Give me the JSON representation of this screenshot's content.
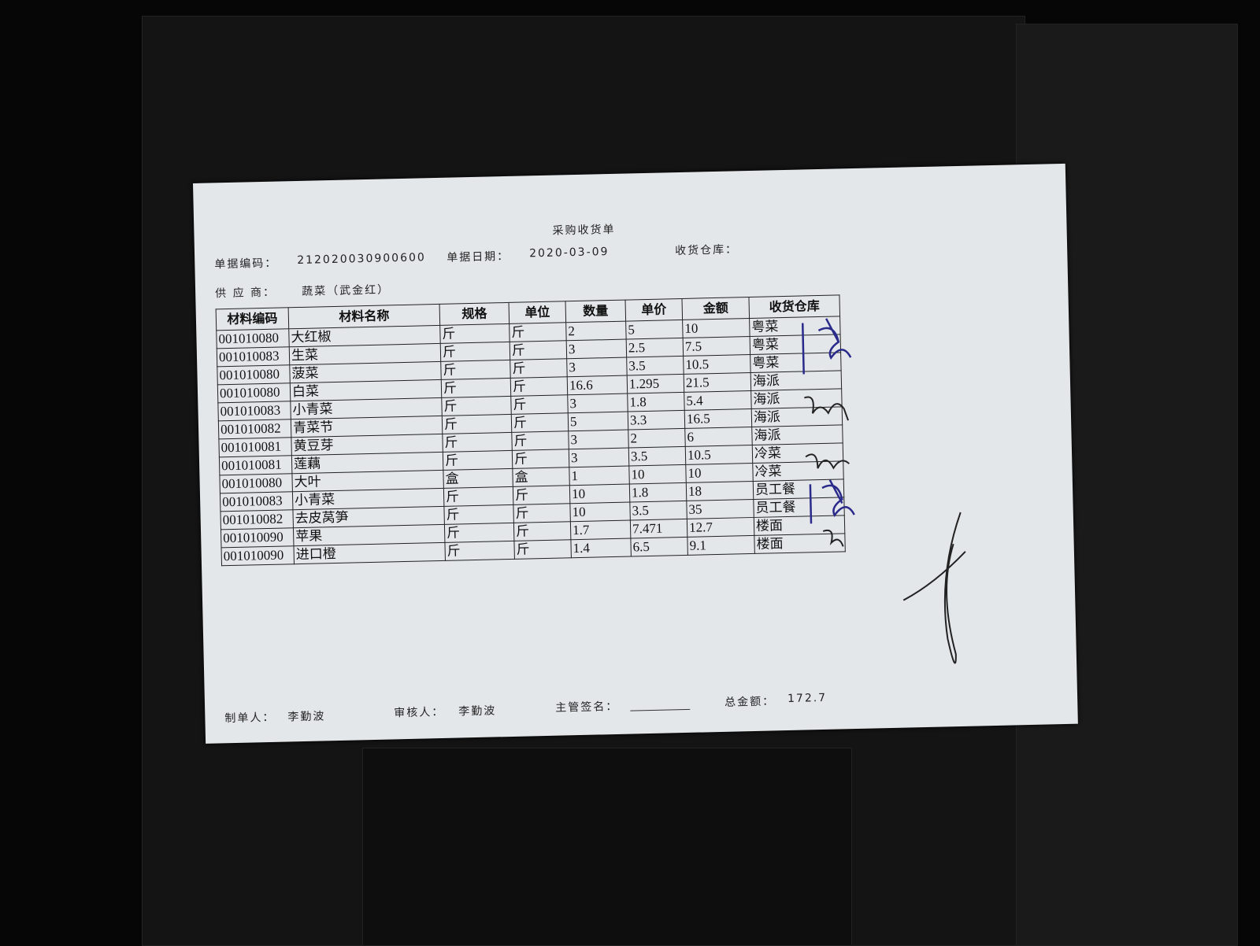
{
  "document": {
    "title": "采购收货单",
    "doc_no_label": "单据编码：",
    "doc_no": "212020030900600",
    "date_label": "单据日期：",
    "date": "2020-03-09",
    "warehouse_label": "收货仓库：",
    "supplier_label": "供 应 商：",
    "supplier": "蔬菜（武金红）",
    "table": {
      "headers": [
        "材料编码",
        "材料名称",
        "规格",
        "单位",
        "数量",
        "单价",
        "金额",
        "收货仓库"
      ],
      "rows": [
        [
          "001010080",
          "大红椒",
          "斤",
          "斤",
          "2",
          "5",
          "10",
          "粤菜"
        ],
        [
          "001010083",
          "生菜",
          "斤",
          "斤",
          "3",
          "2.5",
          "7.5",
          "粤菜"
        ],
        [
          "001010080",
          "菠菜",
          "斤",
          "斤",
          "3",
          "3.5",
          "10.5",
          "粤菜"
        ],
        [
          "001010080",
          "白菜",
          "斤",
          "斤",
          "16.6",
          "1.295",
          "21.5",
          "海派"
        ],
        [
          "001010083",
          "小青菜",
          "斤",
          "斤",
          "3",
          "1.8",
          "5.4",
          "海派"
        ],
        [
          "001010082",
          "青菜节",
          "斤",
          "斤",
          "5",
          "3.3",
          "16.5",
          "海派"
        ],
        [
          "001010081",
          "黄豆芽",
          "斤",
          "斤",
          "3",
          "2",
          "6",
          "海派"
        ],
        [
          "001010081",
          "莲藕",
          "斤",
          "斤",
          "3",
          "3.5",
          "10.5",
          "冷菜"
        ],
        [
          "001010080",
          "大叶",
          "盒",
          "盒",
          "1",
          "10",
          "10",
          "冷菜"
        ],
        [
          "001010083",
          "小青菜",
          "斤",
          "斤",
          "10",
          "1.8",
          "18",
          "员工餐"
        ],
        [
          "001010082",
          "去皮莴笋",
          "斤",
          "斤",
          "10",
          "3.5",
          "35",
          "员工餐"
        ],
        [
          "001010090",
          "苹果",
          "斤",
          "斤",
          "1.7",
          "7.471",
          "12.7",
          "楼面"
        ],
        [
          "001010090",
          "进口橙",
          "斤",
          "斤",
          "1.4",
          "6.5",
          "9.1",
          "楼面"
        ]
      ]
    },
    "maker_label": "制单人：",
    "maker": "李勤波",
    "reviewer_label": "审核人：",
    "reviewer": "李勤波",
    "supervisor_label": "主管签名：",
    "total_label": "总金额：",
    "total": "172.7"
  }
}
